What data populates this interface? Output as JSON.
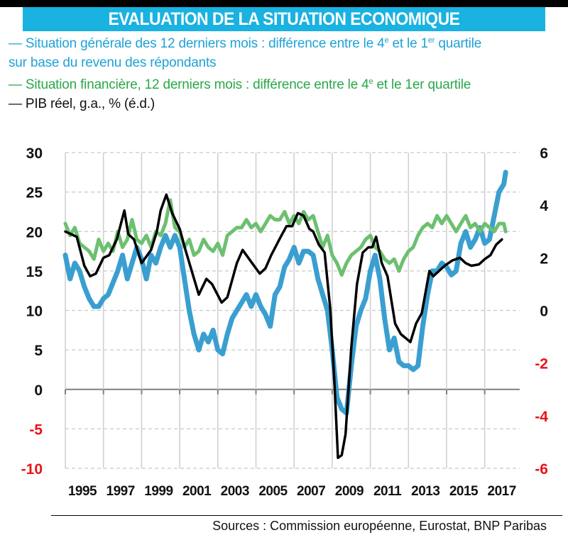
{
  "title": "EVALUATION DE LA SITUATION ECONOMIQUE",
  "legend": {
    "blue_line1_a": "— Situation générale des 12 derniers mois : différence entre le 4",
    "blue_sup1": "e",
    "blue_line1_b": "  et le 1",
    "blue_sup2": "er",
    "blue_line1_c": " quartile",
    "blue_line2": "sur base du revenu des répondants",
    "green_a": "— Situation financière, 12 derniers mois : différence entre le 4",
    "green_sup": "e",
    "green_b": " et le 1er quartile",
    "black": "— PIB réel, g.a., % (é.d.)"
  },
  "sources": "Sources : Commission européenne, Eurostat, BNP Paribas",
  "colors": {
    "blue": "#3a9fd0",
    "green": "#6cc070",
    "black": "#000000",
    "negative_tick": "#e8141b",
    "title_bg": "#19b2e1"
  },
  "chart_data": {
    "type": "line",
    "title": "EVALUATION DE LA SITUATION ECONOMIQUE",
    "xlabel": "",
    "x_ticks": [
      "1995",
      "1997",
      "1999",
      "2001",
      "2003",
      "2005",
      "2007",
      "2009",
      "2011",
      "2013",
      "2015",
      "2017"
    ],
    "xlim": [
      1995,
      2018.9
    ],
    "left_axis": {
      "ylim": [
        -10,
        30
      ],
      "ticks": [
        30,
        25,
        20,
        15,
        10,
        5,
        0,
        -5,
        -10
      ]
    },
    "right_axis": {
      "ylim": [
        -6,
        6
      ],
      "ticks": [
        6,
        4,
        2,
        0,
        -2,
        -4,
        -6
      ]
    },
    "grid": "on",
    "series": [
      {
        "name": "Situation générale des 12 derniers mois : différence entre le 4e et le 1er quartile sur base du revenu des répondants",
        "axis": "left",
        "color": "#3a9fd0",
        "x": [
          1995,
          1995.25,
          1995.5,
          1995.75,
          1996,
          1996.25,
          1996.5,
          1996.75,
          1997,
          1997.25,
          1997.5,
          1997.75,
          1998,
          1998.25,
          1998.5,
          1998.75,
          1999,
          1999.25,
          1999.5,
          1999.75,
          2000,
          2000.25,
          2000.5,
          2000.75,
          2001,
          2001.25,
          2001.5,
          2001.75,
          2002,
          2002.25,
          2002.5,
          2002.75,
          2003,
          2003.25,
          2003.5,
          2003.75,
          2004,
          2004.25,
          2004.5,
          2004.75,
          2005,
          2005.25,
          2005.5,
          2005.75,
          2006,
          2006.25,
          2006.5,
          2006.75,
          2007,
          2007.25,
          2007.5,
          2007.75,
          2008,
          2008.25,
          2008.5,
          2008.75,
          2009,
          2009.25,
          2009.5,
          2009.75,
          2010,
          2010.25,
          2010.5,
          2010.75,
          2011,
          2011.25,
          2011.5,
          2011.75,
          2012,
          2012.25,
          2012.5,
          2012.75,
          2013,
          2013.25,
          2013.5,
          2013.75,
          2014,
          2014.25,
          2014.5,
          2014.75,
          2015,
          2015.25,
          2015.5,
          2015.75,
          2016,
          2016.25,
          2016.5,
          2016.75,
          2017,
          2017.25,
          2017.5,
          2017.75,
          2018,
          2018.1
        ],
        "values": [
          17,
          14,
          16,
          15,
          13,
          11.5,
          10.5,
          10.5,
          11.5,
          12,
          13.5,
          15,
          17,
          14,
          16,
          18,
          16.5,
          14,
          17,
          16,
          18,
          19.5,
          18,
          19.5,
          18,
          14,
          10,
          7,
          5,
          7,
          6,
          7.5,
          5,
          4.5,
          7,
          9,
          10,
          11,
          12,
          10.5,
          12,
          10.5,
          9.5,
          8,
          12,
          13,
          15.5,
          16.5,
          18,
          16,
          17.5,
          17.5,
          17,
          14,
          12,
          10,
          5,
          -1,
          -2.5,
          -3,
          3,
          8,
          10,
          11.5,
          15,
          17,
          14,
          9,
          5,
          6.5,
          3.5,
          3,
          3,
          2.5,
          3,
          8,
          12,
          15,
          15,
          16,
          15.5,
          14.5,
          15,
          18.5,
          20,
          18,
          19,
          20.5,
          18.5,
          19,
          22,
          25,
          26,
          27.5
        ]
      },
      {
        "name": "Situation financière, 12 derniers mois : différence entre le 4e et le 1er quartile",
        "axis": "left",
        "color": "#6cc070",
        "x": [
          1995,
          1995.25,
          1995.5,
          1995.75,
          1996,
          1996.25,
          1996.5,
          1996.75,
          1997,
          1997.25,
          1997.5,
          1997.75,
          1998,
          1998.25,
          1998.5,
          1998.75,
          1999,
          1999.25,
          1999.5,
          1999.75,
          2000,
          2000.25,
          2000.5,
          2000.75,
          2001,
          2001.25,
          2001.5,
          2001.75,
          2002,
          2002.25,
          2002.5,
          2002.75,
          2003,
          2003.25,
          2003.5,
          2003.75,
          2004,
          2004.25,
          2004.5,
          2004.75,
          2005,
          2005.25,
          2005.5,
          2005.75,
          2006,
          2006.25,
          2006.5,
          2006.75,
          2007,
          2007.25,
          2007.5,
          2007.75,
          2008,
          2008.25,
          2008.5,
          2008.75,
          2009,
          2009.25,
          2009.5,
          2009.75,
          2010,
          2010.25,
          2010.5,
          2010.75,
          2011,
          2011.25,
          2011.5,
          2011.75,
          2012,
          2012.25,
          2012.5,
          2012.75,
          2013,
          2013.25,
          2013.5,
          2013.75,
          2014,
          2014.25,
          2014.5,
          2014.75,
          2015,
          2015.25,
          2015.5,
          2015.75,
          2016,
          2016.25,
          2016.5,
          2016.75,
          2017,
          2017.25,
          2017.5,
          2017.75,
          2018,
          2018.1
        ],
        "values": [
          21,
          19.5,
          20.5,
          18.5,
          18,
          17.5,
          16.5,
          19,
          17.5,
          18.5,
          17.5,
          20,
          18,
          19,
          21.5,
          19,
          18.5,
          19.5,
          18,
          20,
          19.5,
          21,
          24,
          20.5,
          20,
          18,
          19,
          17,
          17.5,
          19,
          18,
          17.5,
          18.5,
          17,
          19.5,
          20,
          20.5,
          20.5,
          21.5,
          20.5,
          21,
          20,
          21,
          22,
          21.5,
          21.5,
          22.5,
          21,
          22,
          21,
          22.5,
          21.5,
          22,
          20,
          18,
          19.5,
          17,
          16,
          14.5,
          16,
          17,
          17.5,
          18,
          19,
          19.5,
          18,
          17.5,
          16.5,
          16,
          16.5,
          15,
          16.5,
          17.5,
          18,
          19.5,
          20.5,
          21,
          20.5,
          22,
          21,
          22,
          21,
          20,
          21,
          22,
          20.5,
          21,
          20,
          21,
          20.5,
          20,
          21,
          21,
          20
        ]
      },
      {
        "name": "PIB réel, g.a., % (é.d.)",
        "axis": "right",
        "color": "#000000",
        "x": [
          1995,
          1995.3,
          1995.6,
          1996,
          1996.3,
          1996.6,
          1997,
          1997.3,
          1997.7,
          1998.1,
          1998.3,
          1998.6,
          1999,
          1999.5,
          1999.8,
          2000,
          2000.3,
          2000.6,
          2001,
          2001.3,
          2002,
          2002.4,
          2002.7,
          2003.2,
          2003.5,
          2004,
          2004.3,
          2004.8,
          2005.2,
          2005.5,
          2005.8,
          2006.3,
          2006.6,
          2006.9,
          2007.2,
          2007.5,
          2007.8,
          2008,
          2008.3,
          2008.6,
          2008.9,
          2009.1,
          2009.3,
          2009.5,
          2009.7,
          2010,
          2010.3,
          2010.6,
          2010.9,
          2011.1,
          2011.3,
          2011.6,
          2011.9,
          2012.3,
          2012.6,
          2013.1,
          2013.4,
          2013.7,
          2014.1,
          2014.3,
          2014.9,
          2015.3,
          2015.7,
          2016,
          2016.3,
          2016.7,
          2017,
          2017.3,
          2017.6,
          2017.9
        ],
        "values": [
          3.0,
          2.9,
          2.8,
          1.7,
          1.3,
          1.4,
          2.0,
          2.1,
          2.7,
          3.8,
          2.9,
          2.7,
          1.8,
          2.3,
          3.0,
          3.8,
          4.4,
          3.7,
          3.1,
          2.3,
          0.6,
          1.2,
          1.0,
          0.3,
          0.5,
          1.8,
          2.3,
          1.8,
          1.4,
          1.6,
          2.1,
          2.8,
          3.2,
          3.2,
          3.7,
          3.6,
          3.1,
          3.0,
          2.5,
          2.2,
          0.05,
          -2.5,
          -5.6,
          -5.5,
          -4.7,
          -1.4,
          1.0,
          2.2,
          2.4,
          2.4,
          2.8,
          1.8,
          1.3,
          -0.5,
          -0.9,
          -1.2,
          -0.5,
          -0.1,
          1.5,
          1.3,
          1.7,
          1.9,
          2.0,
          1.8,
          1.7,
          1.75,
          1.95,
          2.1,
          2.5,
          2.7
        ]
      }
    ]
  }
}
